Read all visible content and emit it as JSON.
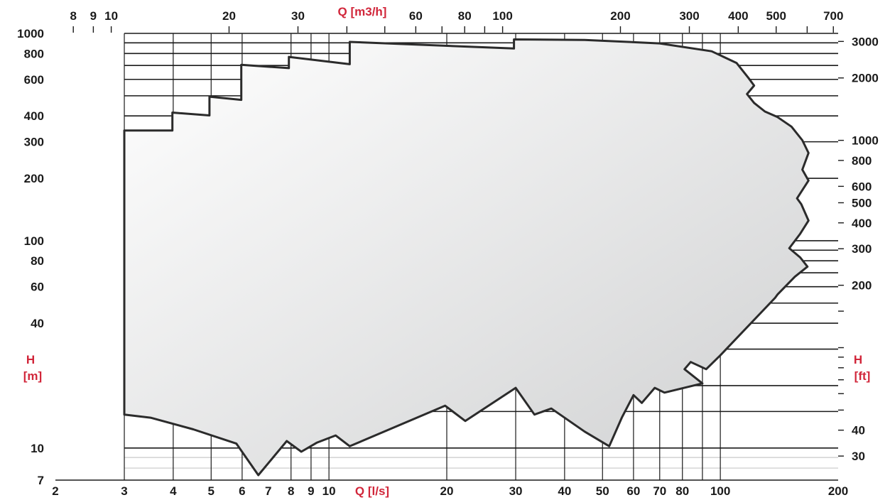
{
  "chart_data": {
    "type": "area",
    "title": "",
    "x_scale": "log",
    "y_scale": "log",
    "grid": true,
    "legend": "none",
    "xlim_ls": [
      2,
      200
    ],
    "ylim_m": [
      7,
      1000
    ],
    "xlabel_bottom": "Q [l/s]",
    "xlabel_top": "Q [m3/h]",
    "ylabel_left": [
      "H",
      "[m]"
    ],
    "ylabel_right": [
      "H",
      "[ft]"
    ],
    "x_ticks_bottom": [
      {
        "v": 2,
        "label": "2"
      },
      {
        "v": 3,
        "label": "3"
      },
      {
        "v": 4,
        "label": "4"
      },
      {
        "v": 5,
        "label": "5"
      },
      {
        "v": 6,
        "label": "6"
      },
      {
        "v": 7,
        "label": "7"
      },
      {
        "v": 8,
        "label": "8"
      },
      {
        "v": 9,
        "label": "9"
      },
      {
        "v": 10,
        "label": "10"
      },
      {
        "v": 20,
        "label": "20"
      },
      {
        "v": 30,
        "label": "30"
      },
      {
        "v": 40,
        "label": "40"
      },
      {
        "v": 50,
        "label": "50"
      },
      {
        "v": 60,
        "label": "60"
      },
      {
        "v": 70,
        "label": "70"
      },
      {
        "v": 80,
        "label": "80"
      },
      {
        "v": 100,
        "label": "100"
      },
      {
        "v": 200,
        "label": "200"
      }
    ],
    "x_ticks_top_m3h": [
      {
        "v": 8,
        "label": "8"
      },
      {
        "v": 9,
        "label": "9"
      },
      {
        "v": 10,
        "label": "10"
      },
      {
        "v": 20,
        "label": "20"
      },
      {
        "v": 30,
        "label": "30"
      },
      {
        "v": 60,
        "label": "60"
      },
      {
        "v": 80,
        "label": "80"
      },
      {
        "v": 100,
        "label": "100"
      },
      {
        "v": 200,
        "label": "200"
      },
      {
        "v": 300,
        "label": "300"
      },
      {
        "v": 400,
        "label": "400"
      },
      {
        "v": 500,
        "label": "500"
      },
      {
        "v": 700,
        "label": "700"
      }
    ],
    "x_minor_top_m3h": [
      40,
      50,
      70,
      90,
      600
    ],
    "y_ticks_left": [
      {
        "v": 7,
        "label": "7"
      },
      {
        "v": 10,
        "label": "10"
      },
      {
        "v": 40,
        "label": "40"
      },
      {
        "v": 60,
        "label": "60"
      },
      {
        "v": 80,
        "label": "80"
      },
      {
        "v": 100,
        "label": "100"
      },
      {
        "v": 200,
        "label": "200"
      },
      {
        "v": 300,
        "label": "300"
      },
      {
        "v": 400,
        "label": "400"
      },
      {
        "v": 600,
        "label": "600"
      },
      {
        "v": 800,
        "label": "800"
      },
      {
        "v": 1000,
        "label": "1000"
      }
    ],
    "y_ticks_right_ft": [
      {
        "v": 30,
        "label": "30"
      },
      {
        "v": 40,
        "label": "40"
      },
      {
        "v": 200,
        "label": "200"
      },
      {
        "v": 300,
        "label": "300"
      },
      {
        "v": 400,
        "label": "400"
      },
      {
        "v": 500,
        "label": "500"
      },
      {
        "v": 600,
        "label": "600"
      },
      {
        "v": 800,
        "label": "800"
      },
      {
        "v": 1000,
        "label": "1000"
      },
      {
        "v": 2000,
        "label": "2000"
      },
      {
        "v": 3000,
        "label": "3000"
      }
    ],
    "y_minor_right_ft": [
      50,
      60,
      70,
      80,
      90,
      100,
      150
    ],
    "x_grid_ls": [
      3,
      4,
      5,
      6,
      8,
      9,
      10,
      20,
      30,
      40,
      50,
      60,
      70,
      80,
      90,
      100
    ],
    "y_grid_m": [
      10,
      15,
      20,
      30,
      40,
      50,
      60,
      70,
      80,
      90,
      100,
      200,
      300,
      400,
      500,
      600,
      700,
      800,
      900
    ],
    "y_grid_light_m": [
      8,
      9
    ],
    "envelope": [
      [
        3.0,
        14.5
      ],
      [
        3.0,
        340
      ],
      [
        3.98,
        340
      ],
      [
        3.98,
        415
      ],
      [
        4.95,
        402
      ],
      [
        4.95,
        495
      ],
      [
        5.97,
        478
      ],
      [
        5.97,
        705
      ],
      [
        7.9,
        680
      ],
      [
        7.9,
        770
      ],
      [
        11.3,
        710
      ],
      [
        11.3,
        910
      ],
      [
        29.7,
        845
      ],
      [
        29.7,
        935
      ],
      [
        45,
        930
      ],
      [
        70,
        895
      ],
      [
        95,
        820
      ],
      [
        110,
        720
      ],
      [
        118,
        610
      ],
      [
        122,
        560
      ],
      [
        117,
        510
      ],
      [
        122,
        462
      ],
      [
        130,
        420
      ],
      [
        140,
        395
      ],
      [
        152,
        355
      ],
      [
        162,
        305
      ],
      [
        168,
        265
      ],
      [
        162,
        220
      ],
      [
        168,
        195
      ],
      [
        157,
        160
      ],
      [
        161,
        150
      ],
      [
        168,
        125
      ],
      [
        160,
        108
      ],
      [
        150,
        92
      ],
      [
        160,
        83
      ],
      [
        167,
        75
      ],
      [
        155,
        67
      ],
      [
        140,
        55
      ],
      [
        138,
        53
      ],
      [
        100,
        28
      ],
      [
        92,
        24
      ],
      [
        84,
        26
      ],
      [
        81,
        24
      ],
      [
        90,
        20.5
      ],
      [
        72,
        18.5
      ],
      [
        68,
        19.5
      ],
      [
        63,
        16.5
      ],
      [
        60,
        18
      ],
      [
        56,
        14
      ],
      [
        52,
        10.2
      ],
      [
        45,
        12
      ],
      [
        37,
        15.5
      ],
      [
        33.5,
        14.5
      ],
      [
        30,
        19.5
      ],
      [
        22.3,
        13.5
      ],
      [
        19.8,
        16
      ],
      [
        11.3,
        10.2
      ],
      [
        10.4,
        11.5
      ],
      [
        9.3,
        10.6
      ],
      [
        8.5,
        9.6
      ],
      [
        7.8,
        10.8
      ],
      [
        6.6,
        7.4
      ],
      [
        5.8,
        10.5
      ],
      [
        4.5,
        12.3
      ],
      [
        3.5,
        14
      ]
    ],
    "colors": {
      "grid": "#1a1a1a",
      "outline": "#2b2b2b",
      "fill_light": "#ffffff",
      "fill_dark": "#cfd0d1",
      "axis_title": "#d1263a",
      "ticks": "#1a1a1a"
    }
  }
}
